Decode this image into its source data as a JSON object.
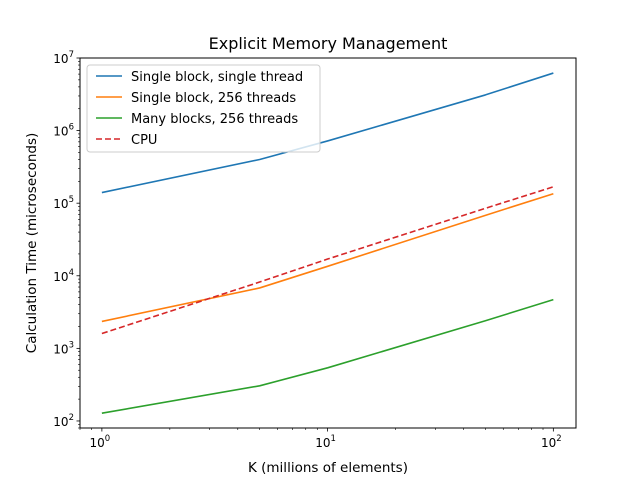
{
  "chart_data": {
    "type": "line",
    "title": "Explicit Memory Management",
    "xlabel": "K (millions of elements)",
    "ylabel": "Calculation Time (microseconds)",
    "xscale": "log",
    "yscale": "log",
    "xlim": [
      0.8,
      126
    ],
    "ylim": [
      80,
      10000000
    ],
    "x_ticks": [
      {
        "base": "10",
        "exp": "0",
        "value": 1
      },
      {
        "base": "10",
        "exp": "1",
        "value": 10
      },
      {
        "base": "10",
        "exp": "2",
        "value": 100
      }
    ],
    "y_ticks": [
      {
        "base": "10",
        "exp": "2",
        "value": 100
      },
      {
        "base": "10",
        "exp": "3",
        "value": 1000
      },
      {
        "base": "10",
        "exp": "4",
        "value": 10000
      },
      {
        "base": "10",
        "exp": "5",
        "value": 100000
      },
      {
        "base": "10",
        "exp": "6",
        "value": 1000000
      },
      {
        "base": "10",
        "exp": "7",
        "value": 10000000
      }
    ],
    "grid": false,
    "legend_position": "top-left",
    "x": [
      1,
      5,
      10,
      50,
      100
    ],
    "series": [
      {
        "name": "Single block, single thread",
        "color": "#1f77b4",
        "dash": "solid",
        "values": [
          140000,
          400000,
          720000,
          3100000,
          6200000
        ]
      },
      {
        "name": "Single block, 256 threads",
        "color": "#ff7f0e",
        "dash": "solid",
        "values": [
          2350,
          6800,
          13500,
          68000,
          135000
        ]
      },
      {
        "name": "Many blocks, 256 threads",
        "color": "#2ca02c",
        "dash": "solid",
        "values": [
          128,
          305,
          540,
          2400,
          4700
        ]
      },
      {
        "name": "CPU",
        "color": "#d62728",
        "dash": "dashed",
        "values": [
          1600,
          8200,
          17000,
          85000,
          168000
        ]
      }
    ]
  }
}
